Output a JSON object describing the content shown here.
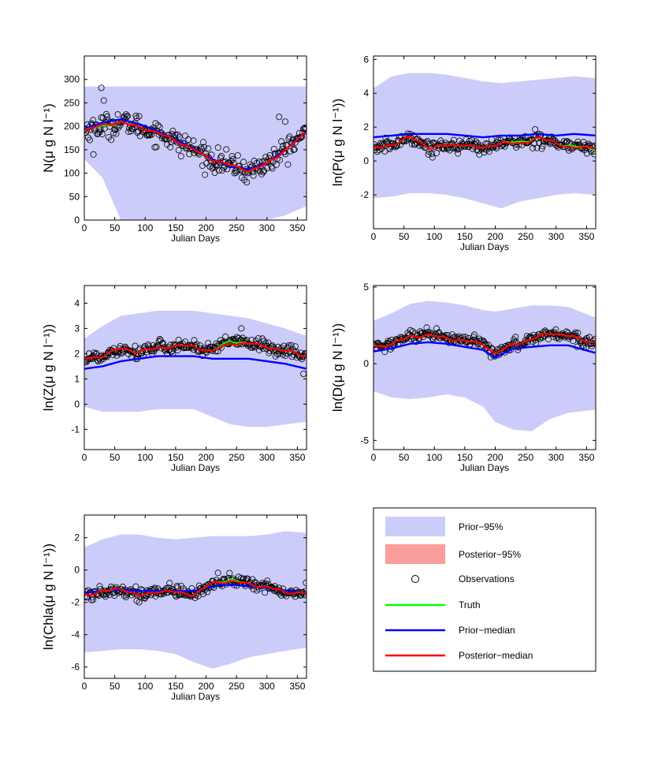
{
  "figure": {
    "xlabel": "Julian Days"
  },
  "chart_data": [
    {
      "type": "line",
      "id": "N",
      "ylabel": "N(μ g N l⁻¹)",
      "xlabel": "Julian Days",
      "xlim": [
        0,
        365
      ],
      "ylim": [
        0,
        350
      ],
      "xticks": [
        0,
        50,
        100,
        150,
        200,
        250,
        300,
        350
      ],
      "yticks": [
        0,
        50,
        100,
        150,
        200,
        250,
        300
      ],
      "x": [
        0,
        30,
        60,
        90,
        120,
        150,
        180,
        210,
        240,
        270,
        300,
        330,
        365
      ],
      "prior_upper": [
        285,
        285,
        285,
        285,
        285,
        285,
        285,
        285,
        285,
        285,
        285,
        285,
        285
      ],
      "prior_lower": [
        130,
        90,
        0,
        0,
        0,
        0,
        0,
        0,
        0,
        0,
        0,
        10,
        30
      ],
      "truth": [
        190,
        200,
        208,
        200,
        185,
        170,
        150,
        130,
        115,
        105,
        120,
        150,
        185
      ],
      "prior_median": [
        195,
        208,
        215,
        205,
        190,
        172,
        152,
        130,
        114,
        108,
        122,
        150,
        190
      ],
      "posterior_median": [
        188,
        203,
        208,
        200,
        185,
        170,
        150,
        130,
        115,
        106,
        120,
        150,
        185
      ],
      "posterior_band": 4,
      "obs_noise": 16,
      "obs_outliers": [
        [
          28,
          282
        ],
        [
          32,
          255
        ],
        [
          15,
          140
        ],
        [
          320,
          220
        ],
        [
          330,
          210
        ]
      ]
    },
    {
      "type": "line",
      "id": "P",
      "ylabel": "ln(P(μ g N l⁻¹))",
      "xlabel": "Julian Days",
      "xlim": [
        0,
        365
      ],
      "ylim": [
        -4,
        6.2
      ],
      "xticks": [
        0,
        50,
        100,
        150,
        200,
        250,
        300,
        350
      ],
      "yticks": [
        -2,
        0,
        2,
        4,
        6
      ],
      "x": [
        0,
        30,
        60,
        90,
        120,
        150,
        180,
        210,
        240,
        270,
        300,
        330,
        365
      ],
      "prior_upper": [
        4.3,
        5.0,
        5.2,
        5.2,
        5.1,
        4.9,
        4.7,
        4.6,
        4.7,
        4.8,
        4.9,
        5.0,
        4.9
      ],
      "prior_lower": [
        -2.2,
        -2.1,
        -1.9,
        -1.9,
        -2.0,
        -2.2,
        -2.5,
        -2.8,
        -2.4,
        -2.2,
        -2.0,
        -1.9,
        -2.0
      ],
      "truth": [
        0.7,
        1.0,
        1.4,
        0.8,
        0.9,
        1.0,
        0.7,
        1.1,
        1.1,
        1.4,
        1.0,
        0.9,
        0.7
      ],
      "prior_median": [
        1.4,
        1.5,
        1.6,
        1.6,
        1.6,
        1.5,
        1.4,
        1.5,
        1.5,
        1.6,
        1.5,
        1.6,
        1.5
      ],
      "posterior_median": [
        0.7,
        1.0,
        1.4,
        0.8,
        0.9,
        1.0,
        0.7,
        1.1,
        1.0,
        1.4,
        1.0,
        0.8,
        0.8
      ],
      "posterior_band": 0.08,
      "obs_noise": 0.25,
      "obs_outliers": []
    },
    {
      "type": "line",
      "id": "Z",
      "ylabel": "ln(Z(μ g N l⁻¹))",
      "xlabel": "Julian Days",
      "xlim": [
        0,
        365
      ],
      "ylim": [
        -1.8,
        4.7
      ],
      "xticks": [
        0,
        50,
        100,
        150,
        200,
        250,
        300,
        350
      ],
      "yticks": [
        -1,
        0,
        1,
        2,
        3,
        4
      ],
      "x": [
        0,
        30,
        60,
        90,
        120,
        150,
        180,
        210,
        240,
        270,
        300,
        330,
        365
      ],
      "prior_upper": [
        2.6,
        3.1,
        3.5,
        3.6,
        3.7,
        3.7,
        3.7,
        3.6,
        3.5,
        3.4,
        3.2,
        3.0,
        2.7
      ],
      "prior_lower": [
        -0.1,
        -0.3,
        -0.3,
        -0.3,
        -0.2,
        -0.2,
        -0.2,
        -0.5,
        -0.8,
        -0.9,
        -0.9,
        -0.8,
        -0.7
      ],
      "truth": [
        1.8,
        1.9,
        2.2,
        2.1,
        2.2,
        2.3,
        2.3,
        2.1,
        2.5,
        2.4,
        2.3,
        2.1,
        1.9
      ],
      "prior_median": [
        1.4,
        1.5,
        1.7,
        1.8,
        1.9,
        1.9,
        1.9,
        1.8,
        1.8,
        1.8,
        1.7,
        1.6,
        1.4
      ],
      "posterior_median": [
        1.8,
        1.9,
        2.2,
        2.1,
        2.2,
        2.3,
        2.3,
        2.1,
        2.4,
        2.4,
        2.3,
        2.1,
        1.9
      ],
      "posterior_band": 0.06,
      "obs_noise": 0.17,
      "obs_outliers": [
        [
          360,
          1.2
        ],
        [
          258,
          3.0
        ]
      ]
    },
    {
      "type": "line",
      "id": "D",
      "ylabel": "ln(D(μ g N l⁻¹))",
      "xlabel": "Julian Days",
      "xlim": [
        0,
        365
      ],
      "ylim": [
        -5.6,
        5.1
      ],
      "xticks": [
        0,
        50,
        100,
        150,
        200,
        250,
        300,
        350
      ],
      "yticks": [
        -5,
        0,
        5
      ],
      "x": [
        0,
        30,
        60,
        90,
        120,
        150,
        180,
        200,
        230,
        260,
        290,
        320,
        365
      ],
      "prior_upper": [
        2.8,
        3.3,
        3.9,
        4.1,
        4.0,
        3.8,
        3.5,
        3.4,
        3.6,
        3.8,
        3.8,
        3.7,
        3.0
      ],
      "prior_lower": [
        -1.8,
        -2.2,
        -2.3,
        -2.2,
        -2.0,
        -2.2,
        -2.8,
        -3.8,
        -4.3,
        -4.4,
        -3.6,
        -3.2,
        -3.0
      ],
      "truth": [
        1.1,
        1.3,
        1.8,
        1.8,
        1.7,
        1.5,
        1.3,
        0.6,
        1.3,
        1.6,
        2.0,
        1.8,
        1.4
      ],
      "prior_median": [
        0.8,
        1.0,
        1.3,
        1.4,
        1.3,
        1.1,
        0.9,
        0.4,
        1.0,
        1.1,
        1.2,
        1.2,
        0.7
      ],
      "posterior_median": [
        1.1,
        1.3,
        1.8,
        1.8,
        1.7,
        1.5,
        1.3,
        0.6,
        1.3,
        1.6,
        2.0,
        1.8,
        1.4
      ],
      "posterior_band": 0.1,
      "obs_noise": 0.25,
      "obs_outliers": []
    },
    {
      "type": "line",
      "id": "Chla",
      "ylabel": "ln(Chla(μ g N l⁻¹))",
      "xlabel": "Julian Days",
      "xlim": [
        0,
        365
      ],
      "ylim": [
        -6.7,
        3.4
      ],
      "xticks": [
        0,
        50,
        100,
        150,
        200,
        250,
        300,
        350
      ],
      "yticks": [
        -6,
        -4,
        -2,
        0,
        2
      ],
      "x": [
        0,
        30,
        60,
        90,
        120,
        150,
        180,
        210,
        240,
        270,
        300,
        330,
        365
      ],
      "prior_upper": [
        1.4,
        1.9,
        2.2,
        2.2,
        2.0,
        1.9,
        2.0,
        2.1,
        2.1,
        2.1,
        2.2,
        2.4,
        2.3
      ],
      "prior_lower": [
        -5.1,
        -5.0,
        -4.9,
        -4.9,
        -5.0,
        -5.2,
        -5.7,
        -6.1,
        -5.8,
        -5.4,
        -5.2,
        -5.0,
        -4.8
      ],
      "truth": [
        -1.5,
        -1.4,
        -1.1,
        -1.6,
        -1.3,
        -1.4,
        -1.5,
        -0.8,
        -0.6,
        -0.9,
        -1.0,
        -1.4,
        -1.4
      ],
      "prior_median": [
        -1.4,
        -1.3,
        -1.2,
        -1.3,
        -1.3,
        -1.3,
        -1.3,
        -1.0,
        -0.9,
        -1.0,
        -1.1,
        -1.3,
        -1.4
      ],
      "posterior_median": [
        -1.5,
        -1.4,
        -1.1,
        -1.6,
        -1.3,
        -1.4,
        -1.5,
        -0.8,
        -0.7,
        -0.9,
        -1.0,
        -1.4,
        -1.4
      ],
      "posterior_band": 0.1,
      "obs_noise": 0.25,
      "obs_outliers": []
    }
  ],
  "legend": {
    "entries": [
      {
        "key": "prior95",
        "label": "Prior−95%",
        "kind": "patch",
        "color": "#ccccfa"
      },
      {
        "key": "post95",
        "label": "Posterior−95%",
        "kind": "patch",
        "color": "#f99e9b"
      },
      {
        "key": "obs",
        "label": "Observations",
        "kind": "marker",
        "color": "#000000"
      },
      {
        "key": "truth",
        "label": "Truth",
        "kind": "line",
        "color": "#00ff00"
      },
      {
        "key": "prior_median",
        "label": "Prior−median",
        "kind": "line",
        "color": "#0000ff"
      },
      {
        "key": "posterior_median",
        "label": "Posterior−median",
        "kind": "line",
        "color": "#ff0000"
      }
    ]
  },
  "colors": {
    "prior_band": "#ccccfa",
    "posterior_band": "#f99e9b",
    "truth": "#00ff00",
    "prior_median": "#0000ff",
    "posterior_median": "#ff0000",
    "observations": "#000000"
  }
}
